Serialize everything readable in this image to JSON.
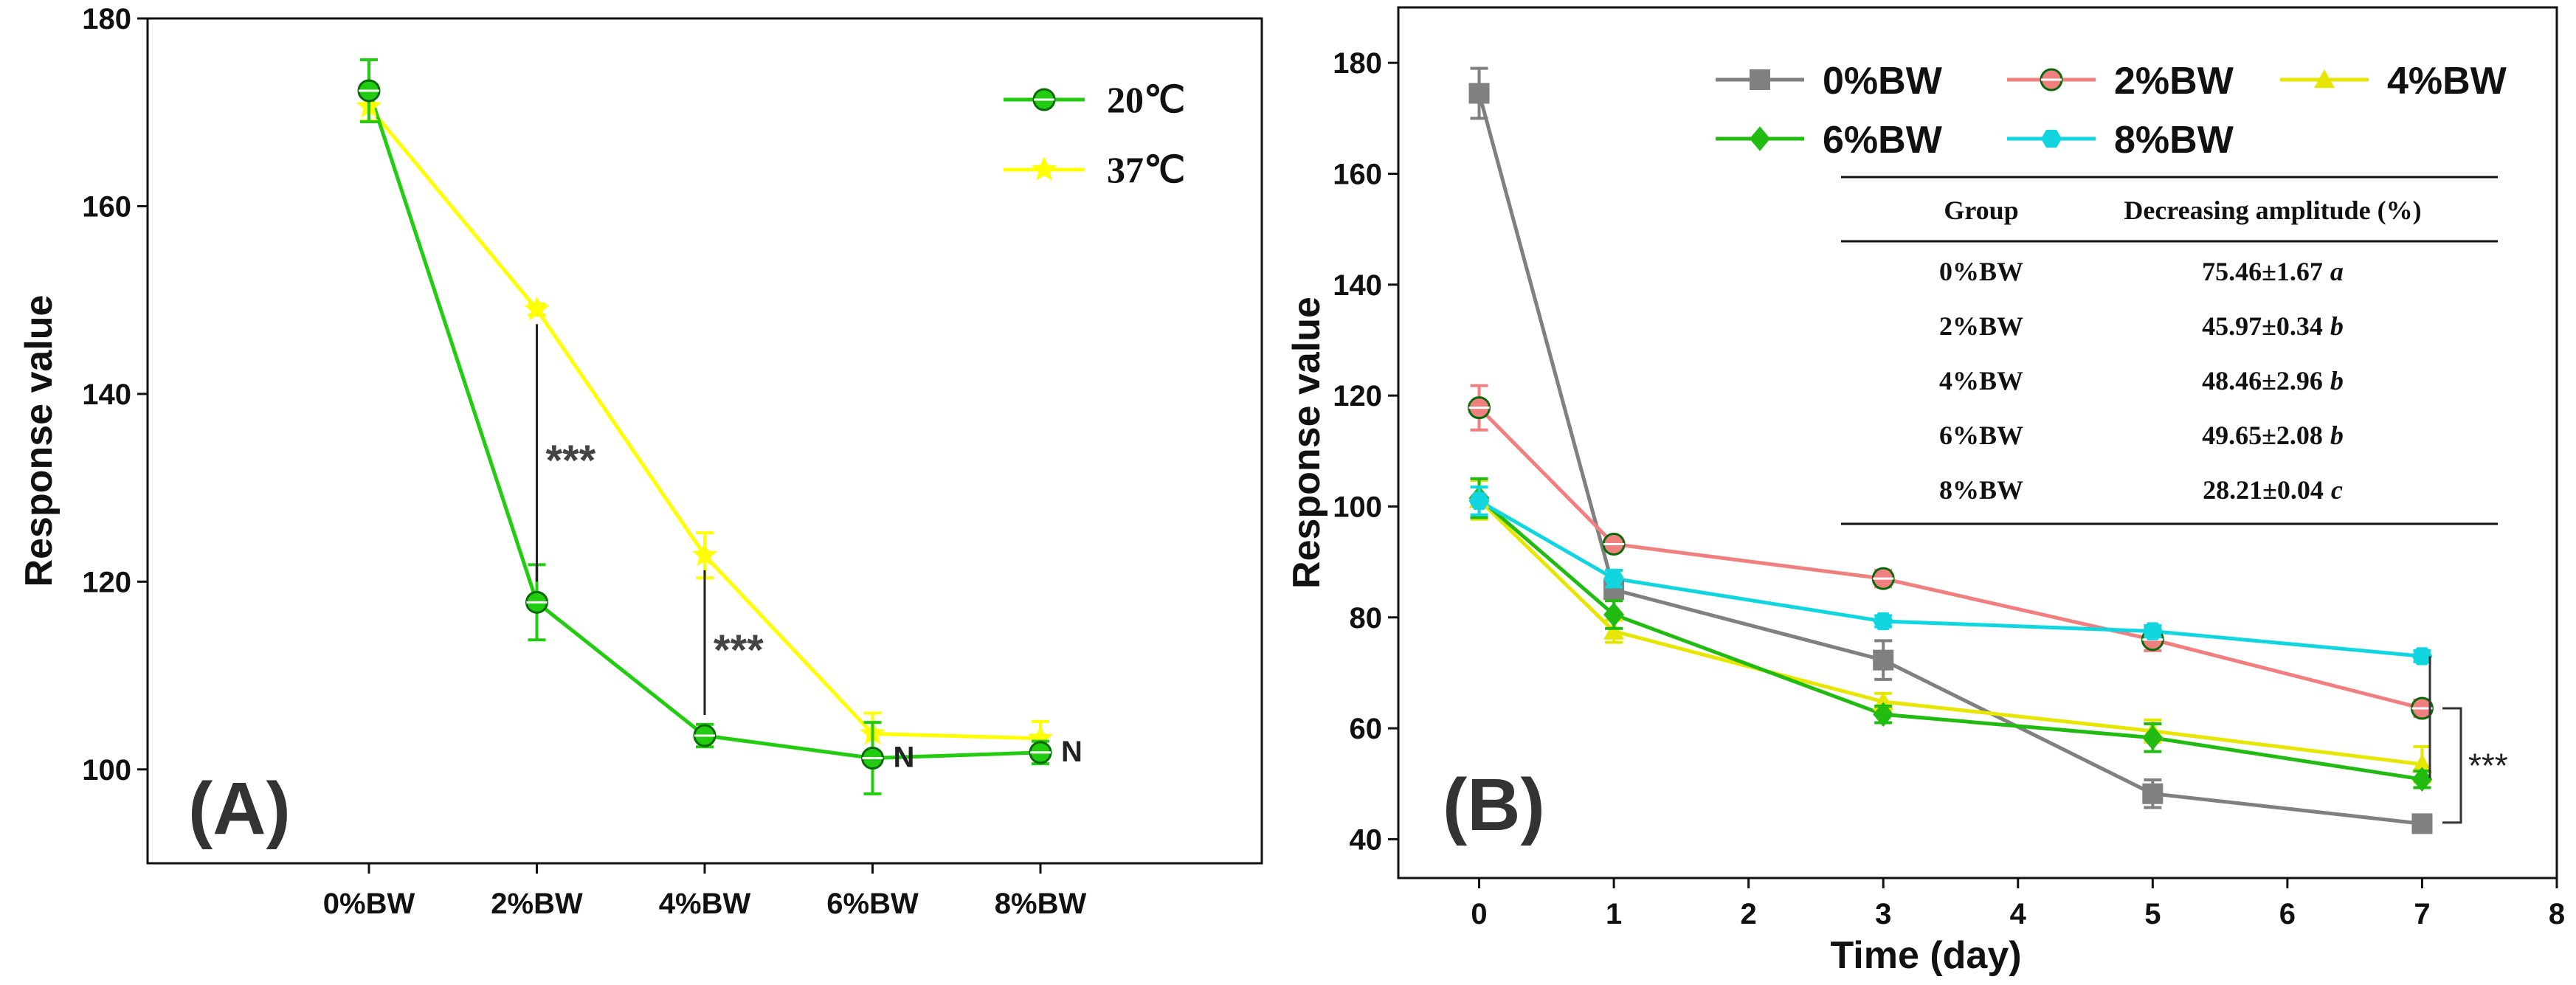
{
  "chart_data": [
    {
      "type": "line",
      "panel_label": "(A)",
      "ylabel": "Response value",
      "xlabel": "",
      "ylim": [
        90,
        180
      ],
      "yticks": [
        "100",
        "120",
        "140",
        "160",
        "180"
      ],
      "categories": [
        "0%BW",
        "2%BW",
        "4%BW",
        "6%BW",
        "8%BW"
      ],
      "series": [
        {
          "name": "20℃",
          "color": "#22cc11",
          "marker": "circle",
          "values": [
            172.3,
            117.8,
            103.6,
            101.2,
            101.8
          ],
          "errors": [
            3.3,
            4.0,
            1.2,
            3.8,
            1.2
          ]
        },
        {
          "name": "37℃",
          "color": "#ffff00",
          "marker": "star",
          "values": [
            170.6,
            149.0,
            122.8,
            103.8,
            103.3
          ],
          "errors": [
            1.5,
            0.6,
            2.4,
            2.2,
            1.8
          ]
        }
      ],
      "annotations": [
        {
          "text": "***",
          "category_index": 1
        },
        {
          "text": "***",
          "category_index": 2
        },
        {
          "text": "N",
          "category_index": 3
        },
        {
          "text": "N",
          "category_index": 4
        }
      ]
    },
    {
      "type": "line",
      "panel_label": "(B)",
      "ylabel": "Response value",
      "xlabel": "Time (day)",
      "xlim": [
        -0.6,
        8
      ],
      "xticks": [
        "0",
        "1",
        "2",
        "3",
        "4",
        "5",
        "6",
        "7",
        "8"
      ],
      "ylim": [
        33,
        190
      ],
      "yticks": [
        "40",
        "60",
        "80",
        "100",
        "120",
        "140",
        "160",
        "180"
      ],
      "x": [
        0,
        1,
        3,
        5,
        7
      ],
      "series": [
        {
          "name": "0%BW",
          "color": "#808080",
          "marker": "square",
          "values": [
            174.5,
            85.0,
            72.3,
            48.2,
            42.8
          ],
          "errors": [
            4.5,
            1.5,
            3.5,
            2.5,
            1.5
          ]
        },
        {
          "name": "2%BW",
          "color": "#f08080",
          "marker": "circle",
          "values": [
            117.8,
            93.2,
            87.0,
            76.0,
            63.6
          ],
          "errors": [
            4.0,
            1.0,
            1.5,
            2.0,
            1.5
          ]
        },
        {
          "name": "4%BW",
          "color": "#e6e600",
          "marker": "triangle",
          "values": [
            101.2,
            77.5,
            64.8,
            59.5,
            53.5
          ],
          "errors": [
            3.5,
            2.0,
            1.5,
            2.0,
            3.2
          ]
        },
        {
          "name": "6%BW",
          "color": "#22bb11",
          "marker": "diamond",
          "values": [
            101.5,
            80.5,
            62.5,
            58.3,
            50.8
          ],
          "errors": [
            3.5,
            2.5,
            1.5,
            2.5,
            1.5
          ]
        },
        {
          "name": "8%BW",
          "color": "#11d6e0",
          "marker": "hexagon",
          "values": [
            101.0,
            87.0,
            79.3,
            77.5,
            73.0
          ],
          "errors": [
            2.5,
            1.5,
            1.0,
            1.0,
            1.0
          ]
        }
      ],
      "table": {
        "headers": [
          "Group",
          "Decreasing amplitude (%)"
        ],
        "rows": [
          {
            "group": "0%BW",
            "value": "75.46±1.67",
            "letter": "a"
          },
          {
            "group": "2%BW",
            "value": "45.97±0.34",
            "letter": "b"
          },
          {
            "group": "4%BW",
            "value": "48.46±2.96",
            "letter": "b"
          },
          {
            "group": "6%BW",
            "value": "49.65±2.08",
            "letter": "b"
          },
          {
            "group": "8%BW",
            "value": "28.21±0.04",
            "letter": "c"
          }
        ]
      },
      "significance": "***"
    }
  ]
}
